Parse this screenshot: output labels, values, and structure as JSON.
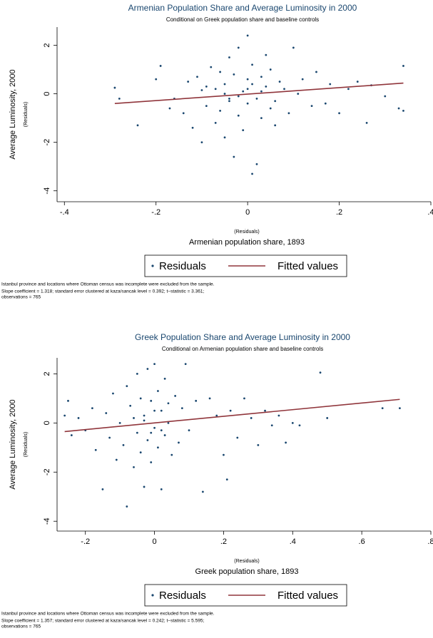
{
  "chart_data": [
    {
      "type": "scatter",
      "title": "Armenian Population Share and Average Luminosity in 2000",
      "subtitle": "Conditional on Greek population share and baseline controls",
      "xlabel_note": "(Residuals)",
      "xlabel": "Armenian population share, 1893",
      "ylabel": "Average Luminosity, 2000",
      "ylabel_note": "(Residuals)",
      "xlim": [
        -0.416,
        0.4
      ],
      "ylim": [
        -4.45,
        2.75
      ],
      "xticks": [
        {
          "value": -0.4,
          "label": "-.4"
        },
        {
          "value": -0.2,
          "label": "-.2"
        },
        0,
        {
          "value": 0.2,
          "label": ".2"
        },
        {
          "value": 0.4,
          "label": ".4"
        }
      ],
      "yticks": [
        -4,
        -2,
        0,
        2
      ],
      "series": [
        {
          "name": "Residuals",
          "color": "#1a476f",
          "x": [
            -0.29,
            -0.28,
            -0.24,
            -0.2,
            -0.19,
            -0.17,
            -0.16,
            -0.14,
            -0.13,
            -0.12,
            -0.11,
            -0.1,
            -0.09,
            -0.09,
            -0.08,
            -0.07,
            -0.07,
            -0.06,
            -0.06,
            -0.05,
            -0.05,
            -0.04,
            -0.04,
            -0.03,
            -0.03,
            -0.02,
            -0.02,
            -0.01,
            -0.01,
            0,
            0,
            0,
            0.01,
            0.01,
            0.02,
            0.02,
            0.03,
            0.03,
            0.04,
            0.04,
            0.05,
            0.05,
            0.06,
            0.07,
            0.08,
            0.09,
            0.1,
            0.11,
            0.12,
            0.14,
            0.15,
            0.17,
            0.18,
            0.2,
            0.22,
            0.24,
            0.26,
            0.27,
            0.3,
            0.33,
            0.34,
            0.34,
            -0.05,
            0.0,
            -0.02,
            0.01,
            -0.04,
            0.03,
            0.06,
            -0.1
          ],
          "values": [
            0.25,
            -0.2,
            -1.3,
            0.6,
            1.15,
            -0.6,
            -0.2,
            -0.8,
            0.5,
            -1.4,
            0.7,
            -2.0,
            0.3,
            -0.5,
            1.1,
            -1.2,
            0.2,
            -0.7,
            0.9,
            -1.8,
            0.4,
            1.5,
            -0.3,
            -2.6,
            0.8,
            -0.9,
            1.9,
            0.1,
            -1.5,
            2.4,
            -0.4,
            0.6,
            -3.3,
            1.2,
            -0.2,
            -2.9,
            0.7,
            -1.0,
            1.6,
            0.3,
            -0.6,
            1.0,
            -1.3,
            0.5,
            0.2,
            -0.8,
            1.9,
            0.0,
            0.6,
            -0.5,
            0.9,
            -0.4,
            0.4,
            -0.8,
            0.2,
            0.5,
            -1.2,
            0.35,
            -0.1,
            -0.6,
            1.15,
            -0.7,
            0.0,
            0.2,
            -0.1,
            0.4,
            -0.2,
            0.1,
            -0.3,
            0.15
          ]
        },
        {
          "name": "Fitted values",
          "color": "#90353b",
          "x": [
            -0.29,
            0.34
          ],
          "values": [
            -0.4,
            0.44
          ]
        }
      ],
      "notes": [
        "Istanbul province and locations where Ottoman census was incomplete were excluded from the sample.",
        "Slope coefficient = 1.318; standard error clustered at kaza/sancak level = 0.392; t−statistic = 3.361;",
        "observations = 765"
      ]
    },
    {
      "type": "scatter",
      "title": "Greek Population Share and Average Luminosity in 2000",
      "subtitle": "Conditional on Armenian population share and baseline controls",
      "xlabel_note": "(Residuals)",
      "xlabel": "Greek population share, 1893",
      "ylabel": "Average Luminosity, 2000",
      "ylabel_note": "(Residuals)",
      "xlim": [
        -0.282,
        0.8
      ],
      "ylim": [
        -4.4,
        2.65
      ],
      "xticks": [
        {
          "value": -0.2,
          "label": "-.2"
        },
        0,
        {
          "value": 0.2,
          "label": ".2"
        },
        {
          "value": 0.4,
          "label": ".4"
        },
        {
          "value": 0.6,
          "label": ".6"
        },
        {
          "value": 0.8,
          "label": ".8"
        }
      ],
      "yticks": [
        -4,
        -2,
        0,
        2
      ],
      "series": [
        {
          "name": "Residuals",
          "color": "#1a476f",
          "x": [
            -0.26,
            -0.25,
            -0.24,
            -0.22,
            -0.2,
            -0.18,
            -0.17,
            -0.15,
            -0.14,
            -0.13,
            -0.12,
            -0.11,
            -0.1,
            -0.09,
            -0.08,
            -0.08,
            -0.07,
            -0.06,
            -0.05,
            -0.05,
            -0.04,
            -0.04,
            -0.03,
            -0.03,
            -0.02,
            -0.02,
            -0.01,
            -0.01,
            0,
            0,
            0.01,
            0.01,
            0.02,
            0.02,
            0.03,
            0.03,
            0.04,
            0.05,
            0.06,
            0.07,
            0.08,
            0.09,
            0.1,
            0.12,
            0.14,
            0.16,
            0.18,
            0.2,
            0.21,
            0.22,
            0.24,
            0.26,
            0.28,
            0.3,
            0.32,
            0.34,
            0.36,
            0.38,
            0.4,
            0.42,
            0.48,
            0.5,
            0.66,
            0.71,
            -0.03,
            0.0,
            0.02,
            -0.06,
            0.04,
            -0.01
          ],
          "values": [
            0.3,
            0.9,
            -0.5,
            0.2,
            -0.3,
            0.6,
            -1.1,
            -2.7,
            0.4,
            -0.6,
            1.2,
            -1.5,
            0.0,
            -0.9,
            -3.4,
            1.5,
            0.7,
            -1.8,
            2.0,
            -0.4,
            1.0,
            -1.2,
            0.3,
            -2.6,
            2.2,
            -0.7,
            0.9,
            -1.6,
            2.4,
            -0.2,
            1.3,
            -1.0,
            0.5,
            -2.7,
            1.8,
            -0.5,
            0.8,
            -1.3,
            1.1,
            -0.8,
            0.6,
            2.4,
            -0.3,
            0.9,
            -2.8,
            1.0,
            0.3,
            -1.3,
            -2.3,
            0.5,
            -0.6,
            1.0,
            0.2,
            -0.9,
            0.5,
            -0.1,
            0.3,
            -0.8,
            0.0,
            -0.1,
            2.05,
            0.2,
            0.6,
            0.6,
            0.1,
            0.5,
            -0.3,
            0.2,
            0.0,
            -0.4
          ]
        },
        {
          "name": "Fitted values",
          "color": "#90353b",
          "x": [
            -0.26,
            0.71
          ],
          "values": [
            -0.35,
            0.96
          ]
        }
      ],
      "notes": [
        "Istanbul province and locations where Ottoman census was incomplete were excluded from the sample.",
        "Slope coefficient = 1.357; standard error clustered at kaza/sancak level = 0.242; t−statistic = 5.595;",
        "observations = 765"
      ]
    }
  ]
}
